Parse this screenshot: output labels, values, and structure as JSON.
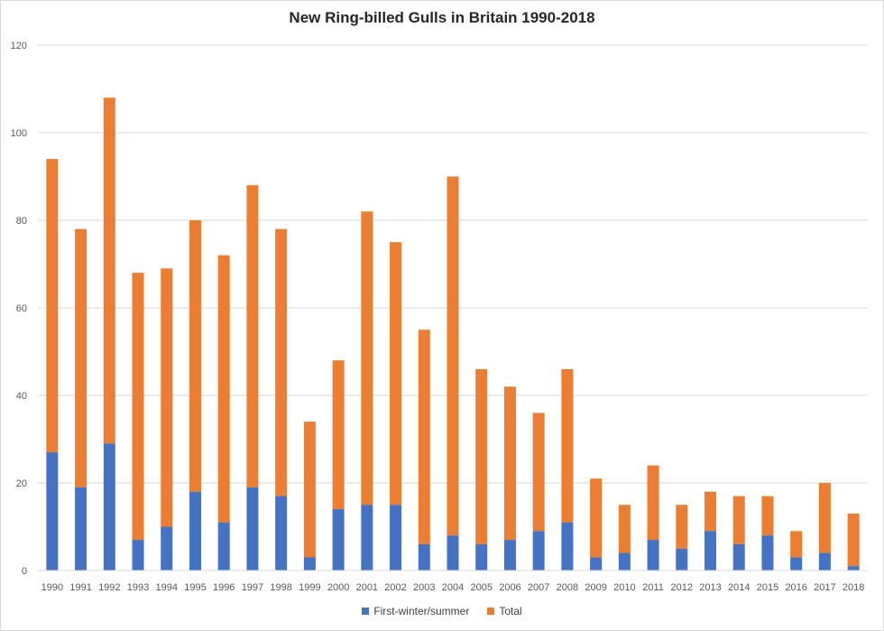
{
  "chart_data": {
    "type": "bar",
    "stacked": true,
    "title": "New Ring-billed Gulls in Britain 1990-2018",
    "xlabel": "",
    "ylabel": "",
    "ylim": [
      0,
      120
    ],
    "yticks": [
      0,
      20,
      40,
      60,
      80,
      100,
      120
    ],
    "grid": true,
    "legend_position": "bottom",
    "categories": [
      "1990",
      "1991",
      "1992",
      "1993",
      "1994",
      "1995",
      "1996",
      "1997",
      "1998",
      "1999",
      "2000",
      "2001",
      "2002",
      "2003",
      "2004",
      "2005",
      "2006",
      "2007",
      "2008",
      "2009",
      "2010",
      "2011",
      "2012",
      "2013",
      "2014",
      "2015",
      "2016",
      "2017",
      "2018"
    ],
    "series": [
      {
        "name": "First-winter/summer",
        "color": "#4472c4",
        "values": [
          27,
          19,
          29,
          7,
          10,
          18,
          11,
          19,
          17,
          3,
          14,
          15,
          15,
          6,
          8,
          6,
          7,
          9,
          11,
          3,
          4,
          7,
          5,
          9,
          6,
          8,
          3,
          4,
          1
        ]
      },
      {
        "name": "Total",
        "color": "#ed7d31",
        "values": [
          94,
          78,
          108,
          68,
          69,
          80,
          72,
          88,
          78,
          34,
          48,
          82,
          75,
          55,
          90,
          46,
          42,
          36,
          46,
          21,
          15,
          24,
          15,
          18,
          17,
          17,
          9,
          20,
          13
        ]
      }
    ]
  }
}
